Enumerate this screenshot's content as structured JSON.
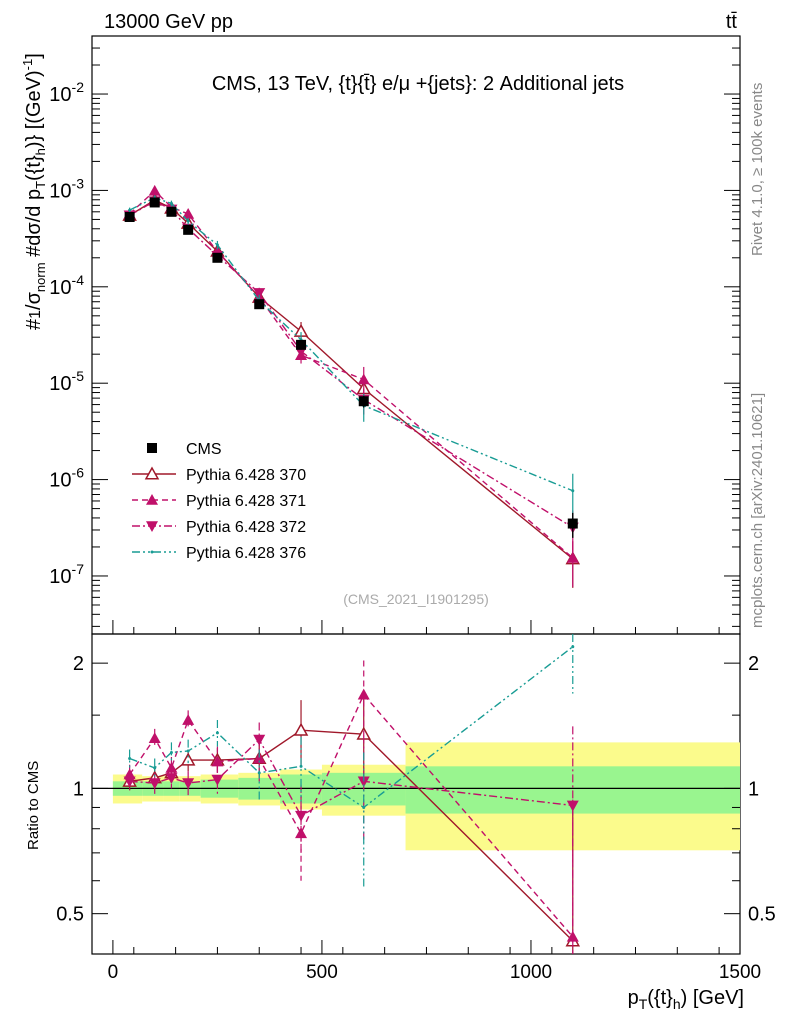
{
  "header": {
    "beam_label": "13000 GeV pp",
    "process_label": "tt̄"
  },
  "side_labels": {
    "rivet": "Rivet 4.1.0, ≥ 100k events",
    "mcplots": "mcplots.cern.ch [arXiv:2401.10621]"
  },
  "chart_data": {
    "type": "line",
    "title": "CMS, 13 TeV, {t}{t̄} e/μ +{jets}: 2 Additional jets",
    "analysis_id": "(CMS_2021_I1901295)",
    "xlabel": "p_T({t}_h) [GeV]",
    "ylabel": "#1/σ_norm #dσ/d p_T({t}_h)} [(GeV)^-1]",
    "ratio_ylabel": "Ratio to CMS",
    "xlim": [
      -50,
      1500
    ],
    "ylim": [
      2.5e-08,
      0.04
    ],
    "ratio_ylim": [
      0.4,
      2.35
    ],
    "yscale": "log",
    "ratio_yscale": "log",
    "x_ticks": [
      "0",
      "500",
      "1000",
      "1500"
    ],
    "y_ticks": [
      "10^-7",
      "10^-6",
      "10^-5",
      "10^-4",
      "10^-3",
      "10^-2"
    ],
    "ratio_ticks": [
      "0.5",
      "1",
      "2"
    ],
    "x": [
      40,
      100,
      140,
      180,
      250,
      350,
      450,
      600,
      1100
    ],
    "bin_edges": [
      0,
      70,
      120,
      160,
      210,
      300,
      400,
      500,
      700,
      1500
    ],
    "data": {
      "name": "CMS",
      "values": [
        0.00053,
        0.00075,
        0.0006,
        0.00039,
        0.0002,
        6.6e-05,
        2.5e-05,
        6.5e-06,
        3.5e-07
      ],
      "err_inner": [
        0.04,
        0.04,
        0.04,
        0.04,
        0.05,
        0.06,
        0.08,
        0.09,
        0.13
      ],
      "err_outer": [
        0.08,
        0.07,
        0.07,
        0.07,
        0.08,
        0.09,
        0.11,
        0.14,
        0.29
      ]
    },
    "series": [
      {
        "name": "Pythia 6.428 370",
        "color": "#a0182a",
        "dash": "",
        "marker": "triangle-up-open",
        "ratio": [
          1.04,
          1.06,
          1.09,
          1.17,
          1.17,
          1.18,
          1.38,
          1.35,
          0.43
        ],
        "ratio_err": [
          0.05,
          0.06,
          0.06,
          0.07,
          0.08,
          0.12,
          0.25,
          0.3,
          0.5
        ]
      },
      {
        "name": "Pythia 6.428 371",
        "color": "#c0106a",
        "dash": "6,4",
        "marker": "triangle-up",
        "ratio": [
          1.08,
          1.32,
          1.12,
          1.46,
          1.16,
          1.18,
          0.78,
          1.68,
          0.44
        ],
        "ratio_err": [
          0.06,
          0.07,
          0.07,
          0.08,
          0.1,
          0.14,
          0.18,
          0.35,
          0.5
        ]
      },
      {
        "name": "Pythia 6.428 372",
        "color": "#c0106a",
        "dash": "8,3,2,3",
        "marker": "triangle-down",
        "ratio": [
          1.04,
          1.03,
          1.06,
          1.03,
          1.05,
          1.31,
          0.86,
          1.04,
          0.91
        ],
        "ratio_err": [
          0.05,
          0.06,
          0.06,
          0.07,
          0.09,
          0.13,
          0.16,
          0.3,
          0.5
        ]
      },
      {
        "name": "Pythia 6.428 376",
        "color": "#189c94",
        "dash": "8,3,2,3,2,3",
        "marker": "none",
        "ratio": [
          1.18,
          1.12,
          1.22,
          1.23,
          1.36,
          1.09,
          1.13,
          0.9,
          2.19
        ],
        "ratio_err": [
          0.06,
          0.06,
          0.07,
          0.08,
          0.1,
          0.15,
          0.2,
          0.32,
          0.5
        ]
      }
    ]
  }
}
